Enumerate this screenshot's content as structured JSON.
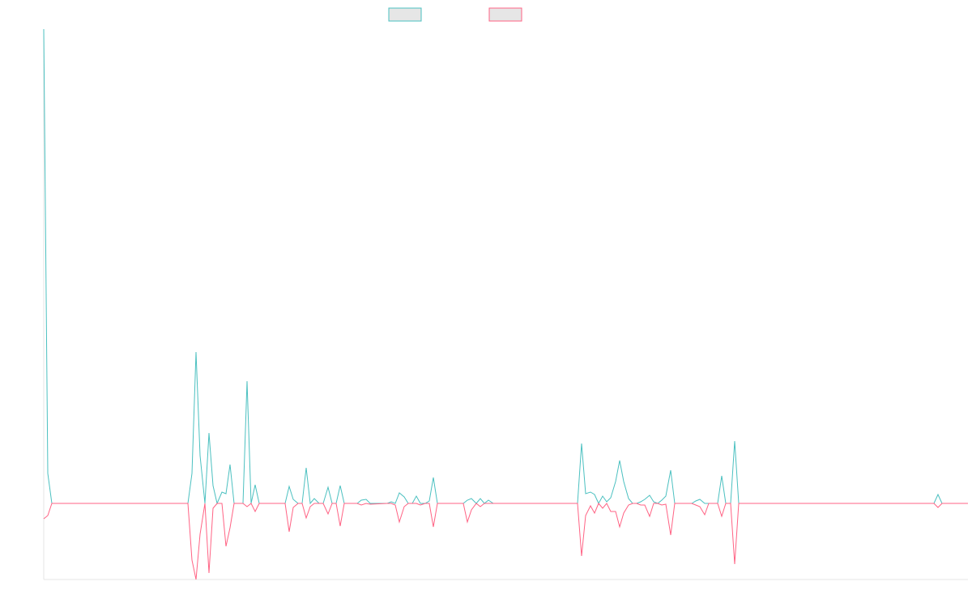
{
  "chart_data": {
    "type": "line",
    "x": [
      0,
      5,
      10,
      178,
      183,
      188,
      193,
      199,
      204,
      209,
      214,
      220,
      225,
      230,
      235,
      246,
      251,
      256,
      261,
      266,
      298,
      303,
      308,
      314,
      319,
      324,
      329,
      334,
      340,
      345,
      351,
      356,
      361,
      366,
      371,
      387,
      392,
      398,
      403,
      424,
      429,
      434,
      439,
      445,
      450,
      455,
      460,
      465,
      471,
      476,
      481,
      486,
      518,
      523,
      528,
      534,
      539,
      544,
      549,
      555,
      659,
      664,
      669,
      675,
      680,
      685,
      690,
      695,
      700,
      706,
      711,
      716,
      722,
      727,
      732,
      737,
      742,
      748,
      753,
      758,
      763,
      768,
      774,
      779,
      800,
      805,
      810,
      816,
      821,
      832,
      837,
      842,
      848,
      853,
      858,
      1099,
      1104,
      1109,
      1141
    ],
    "series": [
      {
        "color": "#4bc0c0",
        "values": [
          58.6,
          3.7,
          0,
          0,
          3.7,
          18.7,
          5.9,
          0,
          8.7,
          2.2,
          0,
          1.4,
          1.2,
          4.8,
          0,
          0,
          15.1,
          0,
          2.3,
          0,
          0,
          2.1,
          0.5,
          0,
          0,
          4.4,
          0,
          0.6,
          0,
          0,
          2,
          0,
          0,
          2.2,
          0,
          0,
          0.4,
          0.5,
          0,
          0,
          0.2,
          0,
          1.3,
          0.8,
          0,
          0,
          0.9,
          0,
          0,
          0.3,
          3.2,
          0,
          0,
          0.4,
          0.6,
          0,
          0.6,
          0,
          0.4,
          0,
          0,
          7.4,
          1.2,
          1.4,
          1.1,
          0,
          0.9,
          0.2,
          0.7,
          2.7,
          5.3,
          2.7,
          0.6,
          0,
          0,
          0.2,
          0.5,
          1,
          0.2,
          0,
          0.4,
          0.9,
          4.1,
          0,
          0,
          0.3,
          0.5,
          0,
          0,
          0,
          3.4,
          0,
          0,
          7.7,
          0,
          0,
          1.1,
          0,
          0
        ]
      },
      {
        "color": "#ff6384",
        "values": [
          -1.9,
          -1.5,
          0,
          0,
          -7,
          -9.4,
          -3.8,
          0,
          -8.6,
          -0.6,
          0,
          0,
          -5.3,
          -3,
          0,
          0,
          -0.4,
          0,
          -1,
          0,
          0,
          -3.5,
          -0.5,
          0,
          0,
          -1.8,
          -0.4,
          0,
          0,
          0,
          -1.3,
          0,
          0,
          -2.8,
          0,
          0,
          -0.2,
          0,
          -0.1,
          0,
          0,
          -0.2,
          -2.3,
          -0.4,
          0,
          0,
          0,
          -0.2,
          0,
          0,
          -2.9,
          0,
          0,
          -2.3,
          -0.8,
          0,
          -0.4,
          0,
          0,
          0,
          0,
          -6.5,
          -1.5,
          -0.3,
          -1.2,
          0,
          -0.6,
          0,
          -1,
          -1,
          -2.9,
          -1.2,
          -0.2,
          0,
          0,
          -0.2,
          -0.2,
          -1.6,
          0,
          0,
          -0.2,
          -0.1,
          -3.9,
          0,
          0,
          -0.2,
          -0.4,
          -1.4,
          0,
          0,
          -1.6,
          0,
          0,
          -7.5,
          0,
          0,
          -0.5,
          0,
          0
        ]
      }
    ],
    "xlim": [
      0,
      1141
    ],
    "ylim": [
      -9.4,
      58.6
    ]
  }
}
